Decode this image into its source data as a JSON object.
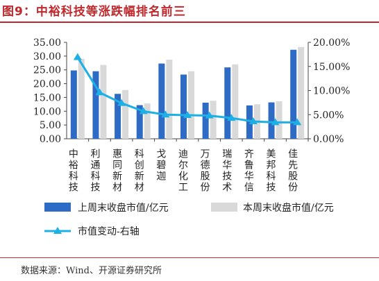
{
  "figure": {
    "title": "图9：中裕科技等涨跌幅排名前三",
    "source": "数据来源：Wind、开源证券研究所"
  },
  "colors": {
    "accent": "#c0282c",
    "bar_last_week": "#2e6bc4",
    "bar_this_week": "#d9d9d9",
    "line": "#1cb0e6"
  },
  "chart_data": {
    "type": "bar",
    "categories": [
      "中裕科技",
      "利通科技",
      "惠同新材",
      "科创新材",
      "戈碧迦",
      "迪尔化工",
      "万德股份",
      "瑞华技术",
      "齐鲁华信",
      "美邦科技",
      "佳先股份"
    ],
    "series": [
      {
        "name": "上周末收盘市值/亿元",
        "type": "bar",
        "axis": "left",
        "values": [
          24.8,
          24.5,
          16.3,
          12.2,
          27.3,
          23.3,
          13.1,
          25.9,
          12.1,
          13.2,
          32.3
        ]
      },
      {
        "name": "本周末收盘市值/亿元",
        "type": "bar",
        "axis": "left",
        "values": [
          29.0,
          26.8,
          17.7,
          12.8,
          28.7,
          24.5,
          13.8,
          27.0,
          12.5,
          13.6,
          33.3
        ]
      },
      {
        "name": "市值变动-右轴",
        "type": "line",
        "axis": "right",
        "marker": "triangle",
        "values": [
          16.9,
          9.6,
          7.4,
          5.7,
          5.0,
          4.9,
          4.8,
          4.3,
          3.6,
          3.4,
          3.4
        ]
      }
    ],
    "y_left": {
      "min": 0,
      "max": 35,
      "step": 5,
      "tick_format": "0.00",
      "ticks": [
        "0.00",
        "5.00",
        "10.00",
        "15.00",
        "20.00",
        "25.00",
        "30.00",
        "35.00"
      ]
    },
    "y_right": {
      "min": 0,
      "max": 20,
      "step": 5,
      "unit": "%",
      "ticks": [
        "0.00%",
        "5.00%",
        "10.00%",
        "15.00%",
        "20.00%"
      ]
    },
    "legend_position": "bottom",
    "grid": false
  }
}
